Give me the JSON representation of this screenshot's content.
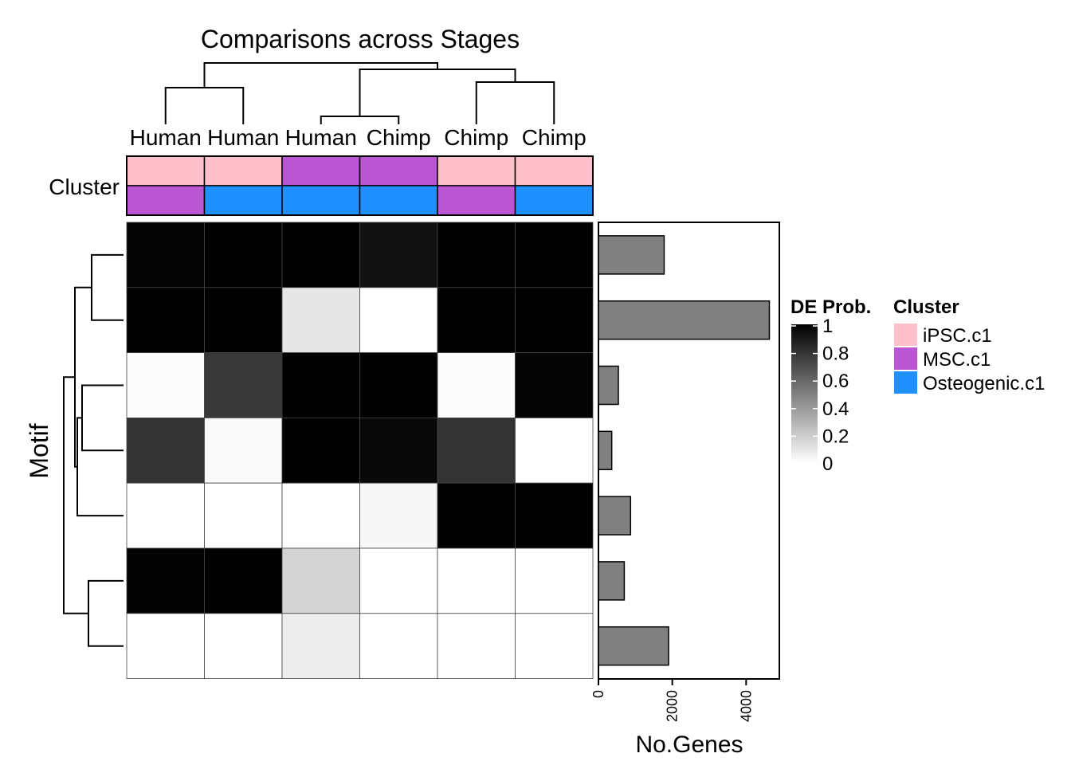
{
  "chart_data": {
    "type": "heatmap",
    "title": "Comparisons across Stages",
    "columns": [
      "Human",
      "Human",
      "Human",
      "Chimp",
      "Chimp",
      "Chimp"
    ],
    "row_axis_label": "Motif",
    "annotation": {
      "label": "Cluster",
      "track1": [
        "iPSC.c1",
        "iPSC.c1",
        "MSC.c1",
        "MSC.c1",
        "iPSC.c1",
        "iPSC.c1"
      ],
      "track2": [
        "MSC.c1",
        "Osteogenic.c1",
        "Osteogenic.c1",
        "Osteogenic.c1",
        "MSC.c1",
        "Osteogenic.c1"
      ],
      "colors": {
        "iPSC.c1": "#FFC0CB",
        "MSC.c1": "#BA55D3",
        "Osteogenic.c1": "#1E90FF"
      }
    },
    "values": [
      [
        0.98,
        1.0,
        1.0,
        0.93,
        1.0,
        1.0
      ],
      [
        1.0,
        1.0,
        0.1,
        0.0,
        1.0,
        1.0
      ],
      [
        0.01,
        0.78,
        1.0,
        1.0,
        0.01,
        0.98
      ],
      [
        0.8,
        0.02,
        1.0,
        0.97,
        0.8,
        0.0
      ],
      [
        0.0,
        0.0,
        0.0,
        0.03,
        1.0,
        1.0
      ],
      [
        0.99,
        1.0,
        0.17,
        0.0,
        0.0,
        0.0
      ],
      [
        0.0,
        0.0,
        0.07,
        0.0,
        0.0,
        0.0
      ]
    ],
    "bar": {
      "xlabel": "No.Genes",
      "values": [
        1780,
        4630,
        540,
        360,
        870,
        700,
        1900
      ],
      "xlim": [
        0,
        4900
      ],
      "ticks": [
        0,
        2000,
        4000
      ],
      "tick_labels": [
        "0",
        "2000",
        "4000"
      ],
      "fill": "#808080"
    },
    "legend": {
      "value_title": "DE Prob.",
      "value_ticks": [
        "1",
        "0.8",
        "0.6",
        "0.4",
        "0.2",
        "0"
      ],
      "cluster_title": "Cluster",
      "cluster_items": [
        "iPSC.c1",
        "MSC.c1",
        "Osteogenic.c1"
      ],
      "placement": "right"
    },
    "dendrograms": {
      "columns": "top",
      "rows": "left"
    }
  }
}
